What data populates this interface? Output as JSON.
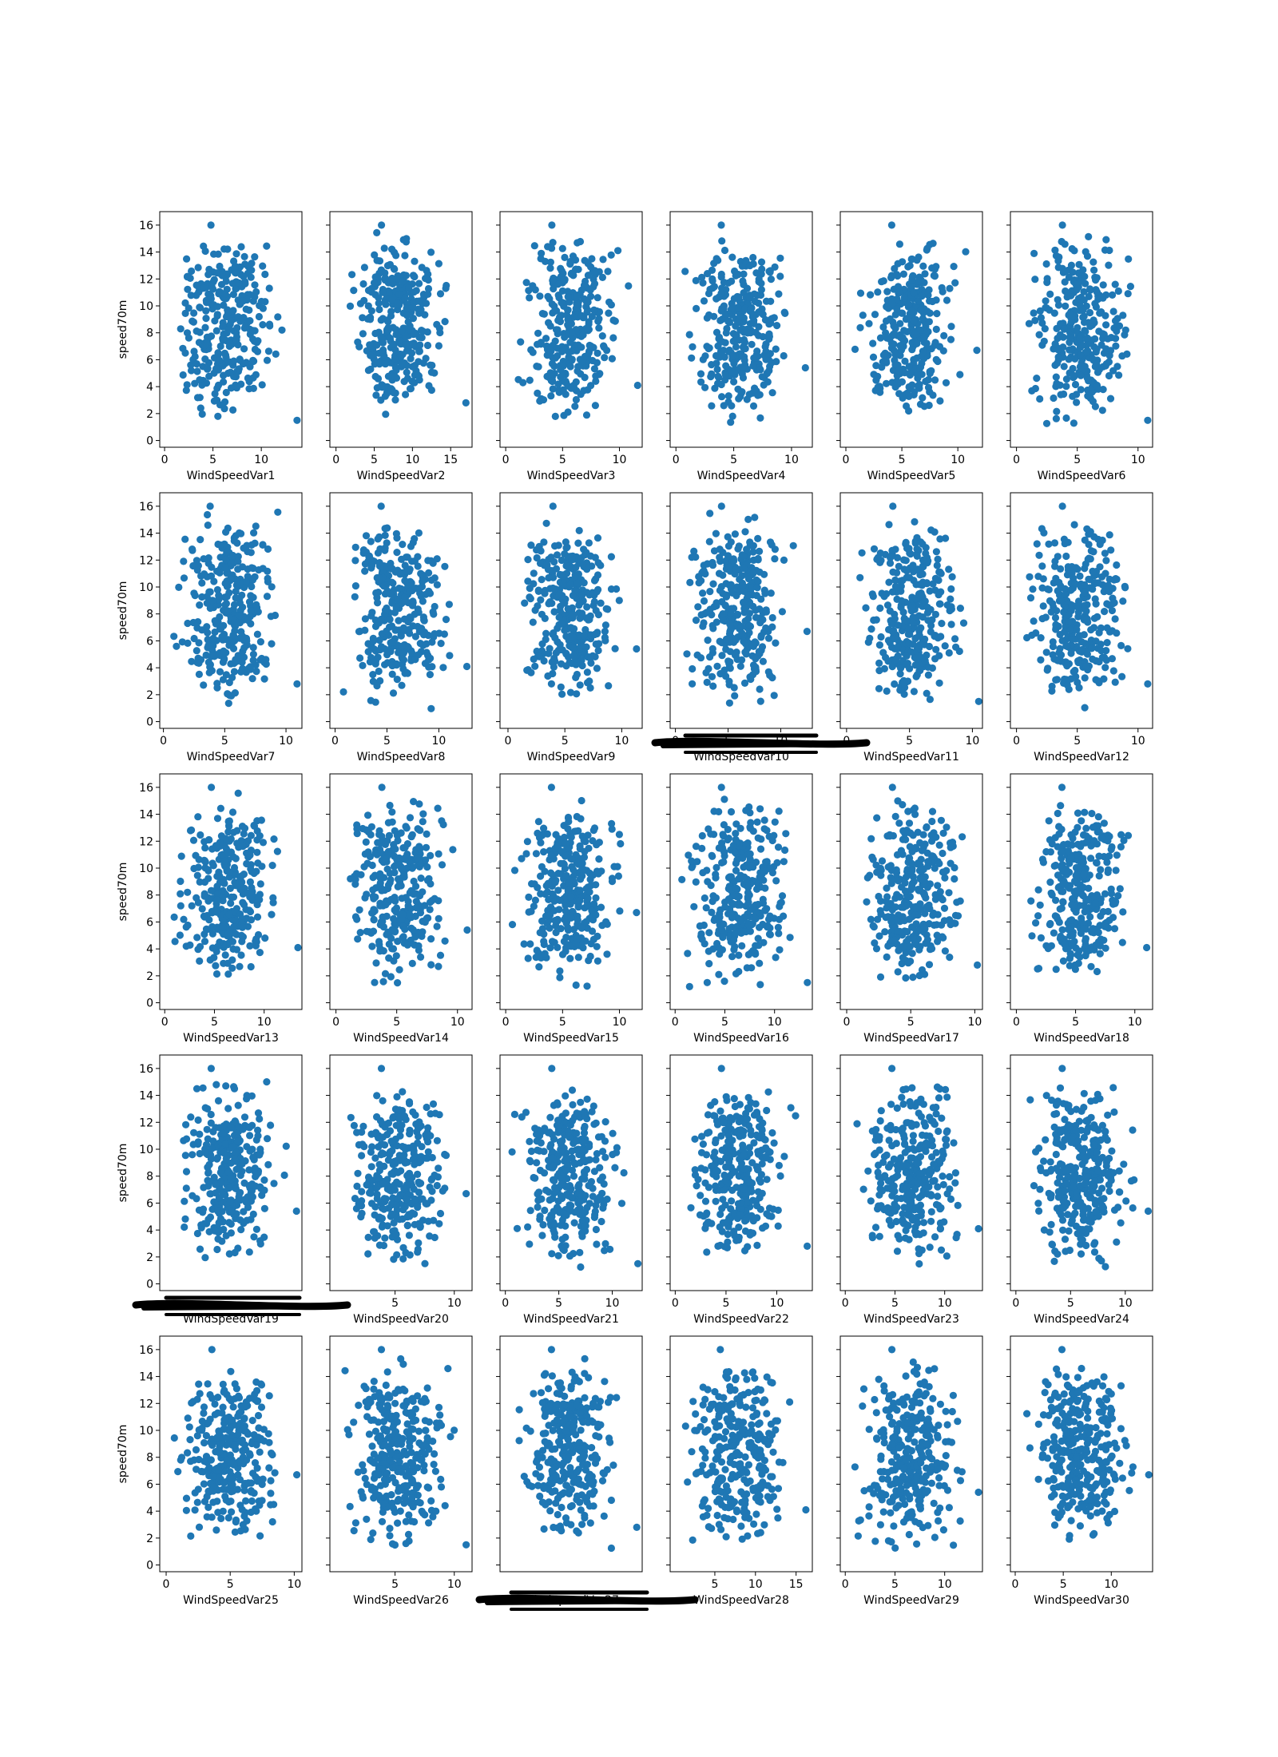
{
  "chart_data": {
    "type": "scatter",
    "layout": {
      "rows": 5,
      "cols": 6,
      "sharey": true
    },
    "marker_color": "#1f77b4",
    "ylabel": "speed70m",
    "ylim": [
      -0.5,
      17
    ],
    "yticks": [
      0,
      2,
      4,
      6,
      8,
      10,
      12,
      14,
      16
    ],
    "grid": false,
    "legend": "none",
    "points_per_panel": "approx. 300 points each (randomly distributed cloud, y in [0.5, 16])",
    "subplots": [
      {
        "xlabel": "WindSpeedVar1",
        "xlim": [
          -0.5,
          14.2
        ],
        "xticks": [
          0,
          5,
          10
        ],
        "xmax_data": 13.7
      },
      {
        "xlabel": "WindSpeedVar2",
        "xlim": [
          -0.8,
          17.8
        ],
        "xticks": [
          0,
          5,
          10,
          15
        ],
        "xmax_data": 17.0
      },
      {
        "xlabel": "WindSpeedVar3",
        "xlim": [
          -0.5,
          12.0
        ],
        "xticks": [
          0,
          5,
          10
        ],
        "xmax_data": 11.6
      },
      {
        "xlabel": "WindSpeedVar4",
        "xlim": [
          -0.5,
          11.8
        ],
        "xticks": [
          0,
          5,
          10
        ],
        "xmax_data": 11.2
      },
      {
        "xlabel": "WindSpeedVar5",
        "xlim": [
          -0.5,
          12.2
        ],
        "xticks": [
          0,
          5,
          10
        ],
        "xmax_data": 11.7
      },
      {
        "xlabel": "WindSpeedVar6",
        "xlim": [
          -0.5,
          11.2
        ],
        "xticks": [
          0,
          5,
          10
        ],
        "xmax_data": 10.8
      },
      {
        "xlabel": "WindSpeedVar7",
        "xlim": [
          -0.3,
          11.3
        ],
        "xticks": [
          0,
          5,
          10
        ],
        "xmax_data": 10.9
      },
      {
        "xlabel": "WindSpeedVar8",
        "xlim": [
          -0.5,
          13.2
        ],
        "xticks": [
          0,
          5,
          10
        ],
        "xmax_data": 12.7
      },
      {
        "xlabel": "WindSpeedVar9",
        "xlim": [
          -0.7,
          11.8
        ],
        "xticks": [
          0,
          5,
          10
        ],
        "xmax_data": 11.3
      },
      {
        "xlabel": "WindSpeedVar10",
        "xlim": [
          -0.5,
          13.0
        ],
        "xticks": [
          0,
          5,
          10
        ],
        "xmax_data": 12.5
      },
      {
        "xlabel": "WindSpeedVar11",
        "xlim": [
          -0.5,
          10.8
        ],
        "xticks": [
          0,
          5,
          10
        ],
        "xmax_data": 10.5
      },
      {
        "xlabel": "WindSpeedVar12",
        "xlim": [
          -0.5,
          11.2
        ],
        "xticks": [
          0,
          5,
          10
        ],
        "xmax_data": 10.8
      },
      {
        "xlabel": "WindSpeedVar13",
        "xlim": [
          -0.5,
          13.8
        ],
        "xticks": [
          0,
          5,
          10
        ],
        "xmax_data": 13.4
      },
      {
        "xlabel": "WindSpeedVar14",
        "xlim": [
          -0.5,
          11.2
        ],
        "xticks": [
          0,
          5,
          10
        ],
        "xmax_data": 10.8
      },
      {
        "xlabel": "WindSpeedVar15",
        "xlim": [
          -0.5,
          12.0
        ],
        "xticks": [
          0,
          5,
          10
        ],
        "xmax_data": 11.5
      },
      {
        "xlabel": "WindSpeedVar16",
        "xlim": [
          -0.5,
          13.8
        ],
        "xticks": [
          0,
          5,
          10
        ],
        "xmax_data": 13.3
      },
      {
        "xlabel": "WindSpeedVar17",
        "xlim": [
          -0.5,
          10.6
        ],
        "xticks": [
          0,
          5,
          10
        ],
        "xmax_data": 10.2
      },
      {
        "xlabel": "WindSpeedVar18",
        "xlim": [
          -0.5,
          11.5
        ],
        "xticks": [
          0,
          5,
          10
        ],
        "xmax_data": 11.0
      },
      {
        "xlabel": "WindSpeedVar19",
        "xlim": [
          -0.5,
          12.5
        ],
        "xticks": [],
        "xmax_data": 12.0,
        "xaxis_obscured": true
      },
      {
        "xlabel": "WindSpeedVar20",
        "xlim": [
          -0.5,
          11.5
        ],
        "xticks": [
          5,
          10
        ],
        "xmax_data": 11.0
      },
      {
        "xlabel": "WindSpeedVar21",
        "xlim": [
          -0.5,
          12.8
        ],
        "xticks": [
          0,
          5,
          10
        ],
        "xmax_data": 12.4
      },
      {
        "xlabel": "WindSpeedVar22",
        "xlim": [
          -0.5,
          13.5
        ],
        "xticks": [
          0,
          5,
          10
        ],
        "xmax_data": 13.0
      },
      {
        "xlabel": "WindSpeedVar23",
        "xlim": [
          -0.5,
          13.8
        ],
        "xticks": [
          0,
          5,
          10
        ],
        "xmax_data": 13.4
      },
      {
        "xlabel": "WindSpeedVar24",
        "xlim": [
          -0.5,
          12.5
        ],
        "xticks": [
          0,
          5,
          10
        ],
        "xmax_data": 12.1
      },
      {
        "xlabel": "WindSpeedVar25",
        "xlim": [
          -0.5,
          10.6
        ],
        "xticks": [
          0,
          5,
          10
        ],
        "xmax_data": 10.2
      },
      {
        "xlabel": "WindSpeedVar26",
        "xlim": [
          -0.5,
          11.5
        ],
        "xticks": [
          5,
          10
        ],
        "xmax_data": 11.0
      },
      {
        "xlabel": "WindSpeedVar27",
        "xlim": [
          -0.5,
          12.5
        ],
        "xticks": [],
        "xmax_data": 12.0,
        "xaxis_obscured": true
      },
      {
        "xlabel": "WindSpeedVar28",
        "xlim": [
          -0.5,
          17.0
        ],
        "xticks": [
          5,
          10,
          15
        ],
        "xmax_data": 16.2
      },
      {
        "xlabel": "WindSpeedVar29",
        "xlim": [
          -0.5,
          13.8
        ],
        "xticks": [
          0,
          5,
          10
        ],
        "xmax_data": 13.4
      },
      {
        "xlabel": "WindSpeedVar30",
        "xlim": [
          -0.5,
          14.3
        ],
        "xticks": [
          0,
          5,
          10
        ],
        "xmax_data": 13.9
      }
    ],
    "redaction_marks": [
      {
        "over": "WindSpeedVar10",
        "color": "#000000"
      },
      {
        "over": "WindSpeedVar19",
        "color": "#000000"
      },
      {
        "over": "WindSpeedVar27",
        "color": "#000000"
      }
    ]
  }
}
